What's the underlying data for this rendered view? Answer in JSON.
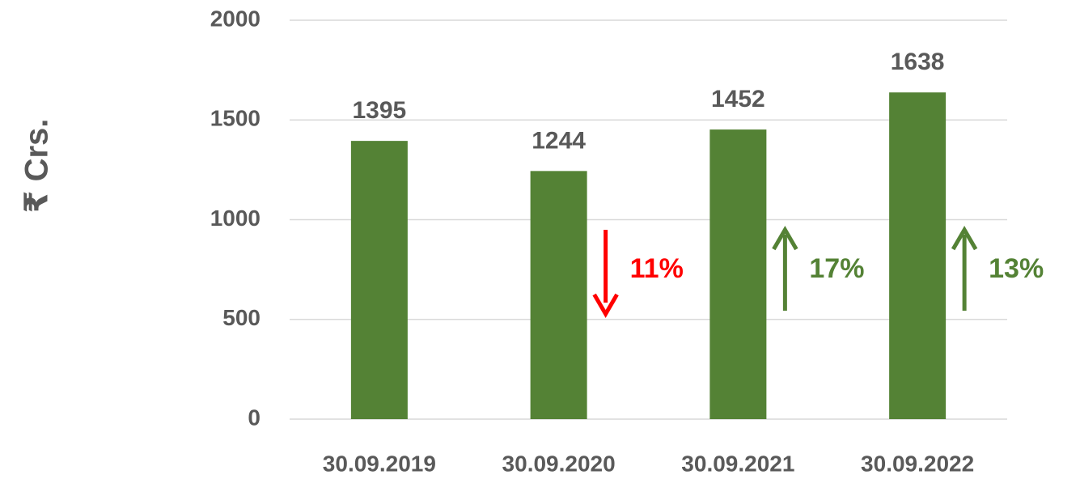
{
  "chart_data": {
    "type": "bar",
    "y_label": "₹ Crs.",
    "categories": [
      "30.09.2019",
      "30.09.2020",
      "30.09.2021",
      "30.09.2022"
    ],
    "values": [
      1395,
      1244,
      1452,
      1638
    ],
    "color": "#548235",
    "ylim": [
      0,
      2000
    ],
    "yticks": [
      0,
      500,
      1000,
      1500,
      2000
    ],
    "grid": true,
    "annotations": [
      {
        "category": "30.09.2020",
        "text": "11%",
        "arrow": "down",
        "color": "#ff0000"
      },
      {
        "category": "30.09.2021",
        "text": "17%",
        "arrow": "up",
        "color": "#548235"
      },
      {
        "category": "30.09.2022",
        "text": "13%",
        "arrow": "up",
        "color": "#548235"
      }
    ]
  }
}
